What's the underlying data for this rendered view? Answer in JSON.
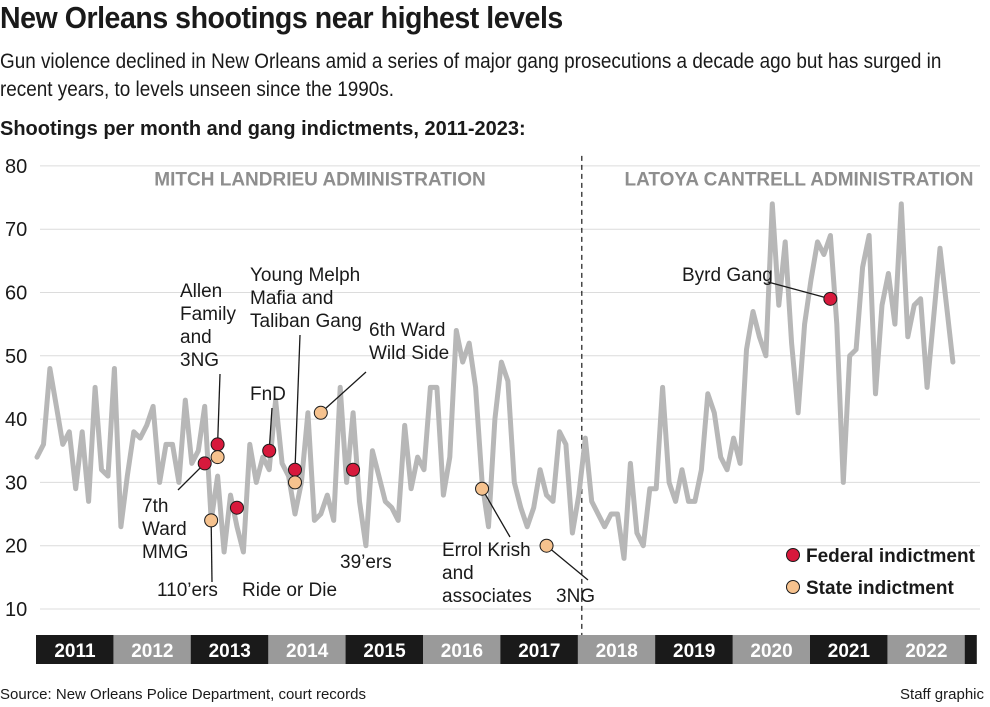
{
  "header": {
    "title": "New Orleans shootings near highest levels",
    "subtitle": "Gun violence declined in New Orleans amid a series of major gang prosecutions a decade ago but has surged in recent years, to levels unseen since the 1990s.",
    "section_title": "Shootings per month and gang indictments, 2011-2023:"
  },
  "footer": {
    "source": "Source: New Orleans Police Department, court records",
    "credit": "Staff graphic"
  },
  "colors": {
    "line": "#b7b7b7",
    "federal": "#d7193c",
    "state": "#f6c28e",
    "year_dark": "#1a1a1a",
    "year_light": "#9a9a9a"
  },
  "chart_data": {
    "type": "line",
    "title": "Shootings per month and gang indictments, 2011-2023:",
    "ylim": [
      5,
      80
    ],
    "yticks": [
      10,
      20,
      30,
      40,
      50,
      60,
      70,
      80
    ],
    "grid": true,
    "years": [
      "2011",
      "2012",
      "2013",
      "2014",
      "2015",
      "2016",
      "2017",
      "2018",
      "2019",
      "2020",
      "2021",
      "2022"
    ],
    "series": [
      {
        "values": [
          34,
          36,
          48,
          42,
          36,
          38,
          29,
          38,
          27,
          45,
          32,
          31,
          48,
          23,
          31,
          38,
          37,
          39,
          42,
          30,
          36,
          36,
          30,
          43,
          33,
          35,
          42,
          24,
          31,
          19,
          28,
          23,
          19,
          36,
          30,
          34,
          32,
          43,
          33,
          31,
          25,
          30,
          41,
          24,
          25,
          28,
          24,
          45,
          30,
          41,
          27,
          20,
          35,
          31,
          27,
          26,
          24,
          39,
          29,
          34,
          32,
          45,
          45,
          28,
          34,
          54,
          49,
          52,
          45,
          30,
          23,
          40,
          49,
          46,
          30,
          26,
          23,
          26,
          32,
          28,
          27,
          38,
          36,
          22,
          28,
          37,
          27,
          25,
          23,
          25,
          25,
          18,
          33,
          22,
          20,
          29,
          29,
          45,
          30,
          27,
          32,
          27,
          27,
          32,
          44,
          41,
          34,
          32,
          37,
          33,
          51,
          57,
          53,
          50,
          74,
          58,
          68,
          52,
          41,
          55,
          62,
          68,
          66,
          69,
          55,
          30,
          50,
          51,
          64,
          69,
          44,
          58,
          63,
          55,
          74,
          53,
          58,
          59,
          45,
          56,
          67,
          58,
          49
        ]
      }
    ],
    "x_start": "2011-01",
    "eras": [
      "MITCH LANDRIEU ADMINISTRATION",
      "LATOYA CANTRELL ADMINISTRATION"
    ],
    "legend": [
      {
        "label": "Federal indictment",
        "kind": "federal"
      },
      {
        "label": "State indictment",
        "kind": "state"
      }
    ],
    "annotations": [
      {
        "label": "Allen Family and 3NG",
        "lines": [
          "Allen",
          "Family",
          "and",
          "3NG"
        ],
        "kind": "federal",
        "month": 28,
        "value": 36
      },
      {
        "label": "7th Ward MMG",
        "lines": [
          "7th",
          "Ward",
          "MMG"
        ],
        "kind": "federal",
        "month": 26,
        "value": 33
      },
      {
        "label": "(state, 2013)",
        "lines": [],
        "kind": "state",
        "month": 28,
        "value": 34
      },
      {
        "label": "110’ers",
        "lines": [
          "110’ers"
        ],
        "kind": "state",
        "month": 27,
        "value": 24
      },
      {
        "label": "Ride or Die",
        "lines": [
          "Ride or Die"
        ],
        "kind": "federal",
        "month": 31,
        "value": 26
      },
      {
        "label": "FnD",
        "lines": [
          "FnD"
        ],
        "kind": "federal",
        "month": 36,
        "value": 35
      },
      {
        "label": "Young Melph Mafia and Taliban Gang",
        "lines": [
          "Young Melph",
          "Mafia and",
          "Taliban Gang"
        ],
        "kind": "federal",
        "month": 40,
        "value": 32
      },
      {
        "label": "(state, 2014)",
        "lines": [],
        "kind": "state",
        "month": 40,
        "value": 30
      },
      {
        "label": "6th Ward Wild Side",
        "lines": [
          "6th Ward",
          "Wild Side"
        ],
        "kind": "state",
        "month": 44,
        "value": 41
      },
      {
        "label": "39’ers",
        "lines": [
          "39’ers"
        ],
        "kind": "federal",
        "month": 49,
        "value": 32
      },
      {
        "label": "Errol Krish and associates",
        "lines": [
          "Errol Krish",
          "and",
          "associates"
        ],
        "kind": "state",
        "month": 69,
        "value": 29
      },
      {
        "label": "3NG",
        "lines": [
          "3NG"
        ],
        "kind": "state",
        "month": 79,
        "value": 20
      },
      {
        "label": "Byrd Gang",
        "lines": [
          "Byrd Gang"
        ],
        "kind": "federal",
        "month": 123,
        "value": 59
      }
    ]
  }
}
